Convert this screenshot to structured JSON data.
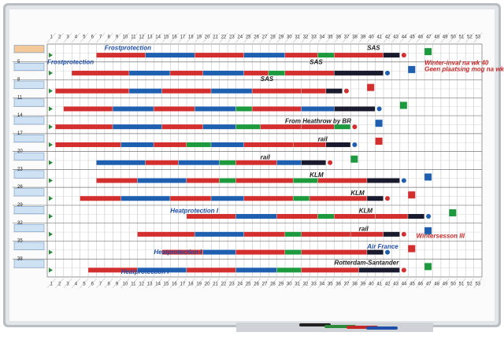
{
  "weeks_top": [
    1,
    2,
    3,
    4,
    5,
    6,
    7,
    8,
    9,
    10,
    11,
    12,
    13,
    14,
    15,
    16,
    17,
    18,
    19,
    20,
    21,
    22,
    23,
    24,
    25,
    26,
    27,
    28,
    29,
    30,
    31,
    32,
    33,
    34,
    35,
    36,
    37,
    38,
    39,
    40,
    41,
    42,
    43,
    44,
    45,
    46,
    47,
    48,
    49,
    50,
    51,
    52,
    53
  ],
  "weeks_bottom": [
    1,
    2,
    3,
    4,
    5,
    6,
    7,
    8,
    9,
    10,
    11,
    12,
    13,
    14,
    15,
    16,
    17,
    18,
    19,
    20,
    21,
    22,
    23,
    24,
    25,
    26,
    27,
    28,
    29,
    30,
    31,
    32,
    33,
    34,
    35,
    36,
    37,
    38,
    39,
    40,
    41,
    42,
    43,
    44,
    45,
    46,
    47,
    48,
    49,
    50,
    51,
    52,
    53
  ],
  "row_numbers": [
    "5",
    "8",
    "11",
    "14",
    "17",
    "20",
    "23",
    "26",
    "29",
    "32",
    "35",
    "38"
  ],
  "annotations": [
    "Frostprotection",
    "Frostprotection",
    "SAS",
    "SAS",
    "Winter-inval na wk 40",
    "Geen plaatsing mog na wk 46",
    "SAS",
    "From Heathrow by BR",
    "rail",
    "rail",
    "KLM",
    "KLM",
    "KLM",
    "Heatprotection I",
    "rail",
    "Wintersesson III",
    "Air France",
    "Heatprotection I",
    "Rotterdam-Santander",
    "Heatprotection I"
  ]
}
